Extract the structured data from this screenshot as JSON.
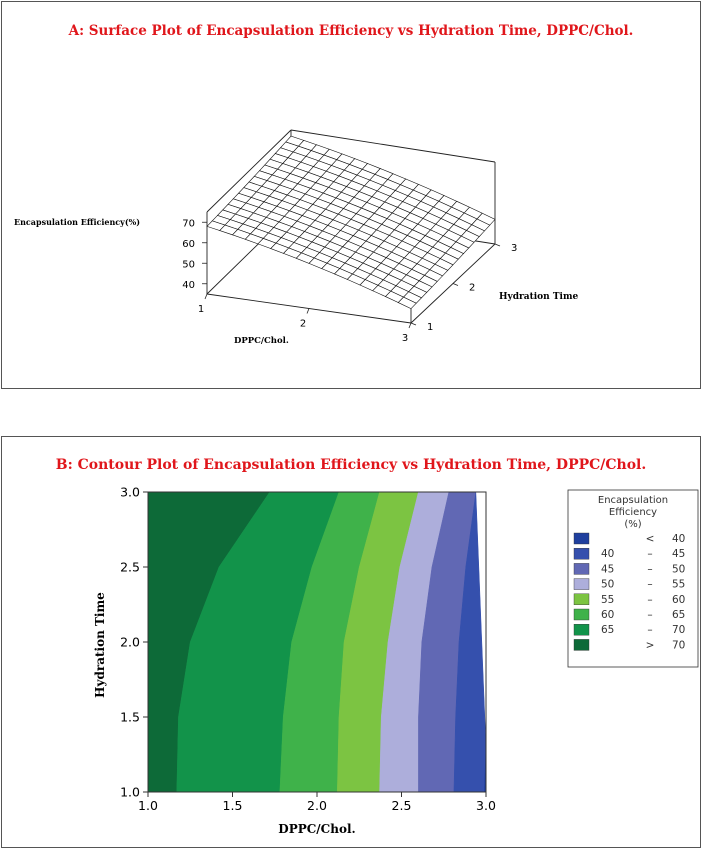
{
  "panel_a": {
    "title": "A: Surface Plot of Encapsulation Efficiency vs Hydration  Time, DPPC/Chol.",
    "zlabel": "Encapsulation Efficiency(%)",
    "xlabel": "DPPC/Chol.",
    "ylabel": "Hydration  Time",
    "z_ticks": [
      "40",
      "50",
      "60",
      "70"
    ],
    "x_ticks": [
      "1",
      "2",
      "3"
    ],
    "y_ticks": [
      "1",
      "2",
      "3"
    ]
  },
  "panel_b": {
    "title": "B: Contour Plot of Encapsulation Efficiency vs Hydration  Time, DPPC/Chol.",
    "xlabel": "DPPC/Chol.",
    "ylabel": "Hydration Time",
    "x_ticks": [
      "1.0",
      "1.5",
      "2.0",
      "2.5",
      "3.0"
    ],
    "y_ticks": [
      "1.0",
      "1.5",
      "2.0",
      "2.5",
      "3.0"
    ],
    "legend_title": [
      "Encapsulation",
      "Efficiency",
      "(%)"
    ],
    "legend": [
      {
        "lo": "",
        "sep": "<",
        "hi": "40",
        "color": "#1f3f9e"
      },
      {
        "lo": "40",
        "sep": "–",
        "hi": "45",
        "color": "#3550ad"
      },
      {
        "lo": "45",
        "sep": "–",
        "hi": "50",
        "color": "#6168b4"
      },
      {
        "lo": "50",
        "sep": "–",
        "hi": "55",
        "color": "#adaedb"
      },
      {
        "lo": "55",
        "sep": "–",
        "hi": "60",
        "color": "#7cc442"
      },
      {
        "lo": "60",
        "sep": "–",
        "hi": "65",
        "color": "#3fb24a"
      },
      {
        "lo": "65",
        "sep": "–",
        "hi": "70",
        "color": "#12934a"
      },
      {
        "lo": "",
        "sep": ">",
        "hi": "70",
        "color": "#0d6a38"
      }
    ]
  },
  "chart_data": [
    {
      "type": "surface",
      "title": "A: Surface Plot of Encapsulation Efficiency vs Hydration  Time, DPPC/Chol.",
      "xlabel": "DPPC/Chol.",
      "ylabel": "Hydration  Time",
      "zlabel": "Encapsulation Efficiency(%)",
      "xlim": [
        1,
        3
      ],
      "ylim": [
        1,
        3
      ],
      "zlim": [
        35,
        75
      ],
      "grid_size": [
        16,
        16
      ],
      "surface_model": {
        "description_of_shape": "efficiency highest (~70) at DPPC/Chol. 1, falling steeply to ~43 at DPPC/Chol. 3; weak increase with hydration time",
        "corners": [
          {
            "x": 1,
            "y": 1,
            "z": 68
          },
          {
            "x": 1,
            "y": 3,
            "z": 72
          },
          {
            "x": 3,
            "y": 1,
            "z": 42
          },
          {
            "x": 3,
            "y": 3,
            "z": 47
          }
        ]
      }
    },
    {
      "type": "contour",
      "title": "B: Contour Plot of Encapsulation Efficiency vs Hydration  Time, DPPC/Chol.",
      "xlabel": "DPPC/Chol.",
      "ylabel": "Hydration Time",
      "xlim": [
        1.0,
        3.0
      ],
      "ylim": [
        1.0,
        3.0
      ],
      "levels": [
        40,
        45,
        50,
        55,
        60,
        65,
        70
      ],
      "contour_lines": [
        {
          "level": 70,
          "points": [
            [
              1.17,
              1.0
            ],
            [
              1.18,
              1.5
            ],
            [
              1.25,
              2.0
            ],
            [
              1.42,
              2.5
            ],
            [
              1.72,
              3.0
            ]
          ]
        },
        {
          "level": 65,
          "points": [
            [
              1.78,
              1.0
            ],
            [
              1.8,
              1.5
            ],
            [
              1.85,
              2.0
            ],
            [
              1.97,
              2.5
            ],
            [
              2.13,
              3.0
            ]
          ]
        },
        {
          "level": 60,
          "points": [
            [
              2.12,
              1.0
            ],
            [
              2.13,
              1.5
            ],
            [
              2.16,
              2.0
            ],
            [
              2.25,
              2.5
            ],
            [
              2.37,
              3.0
            ]
          ]
        },
        {
          "level": 55,
          "points": [
            [
              2.37,
              1.0
            ],
            [
              2.38,
              1.5
            ],
            [
              2.42,
              2.0
            ],
            [
              2.49,
              2.5
            ],
            [
              2.6,
              3.0
            ]
          ]
        },
        {
          "level": 50,
          "points": [
            [
              2.6,
              1.0
            ],
            [
              2.6,
              1.5
            ],
            [
              2.62,
              2.0
            ],
            [
              2.68,
              2.5
            ],
            [
              2.78,
              3.0
            ]
          ]
        },
        {
          "level": 45,
          "points": [
            [
              2.81,
              1.0
            ],
            [
              2.82,
              1.5
            ],
            [
              2.84,
              2.0
            ],
            [
              2.88,
              2.5
            ],
            [
              2.94,
              3.0
            ]
          ]
        },
        {
          "level": 40,
          "points": [
            [
              2.99,
              1.0
            ],
            [
              3.0,
              1.3
            ]
          ]
        }
      ]
    }
  ]
}
